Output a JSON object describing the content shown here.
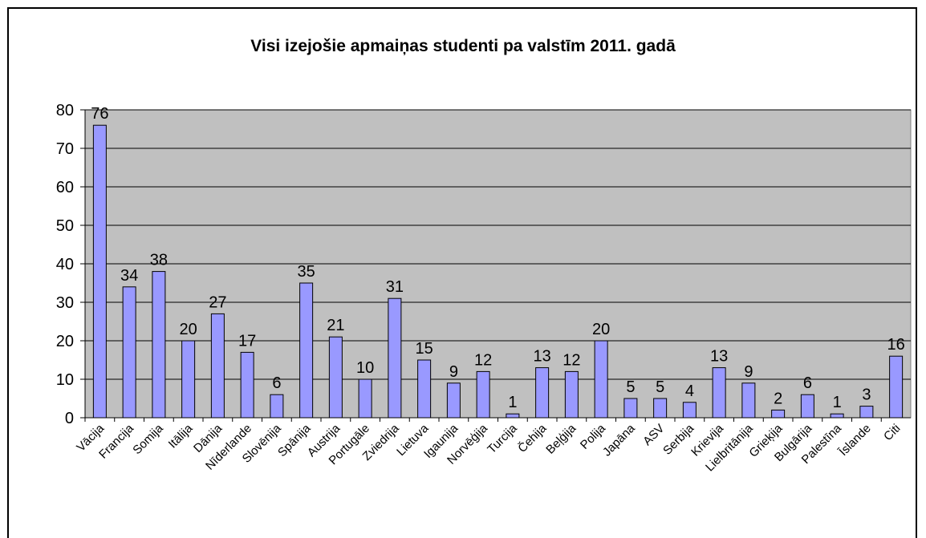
{
  "chart_data": {
    "type": "bar",
    "title": "Visi izejošie apmaiņas studenti pa valstīm 2011. gadā",
    "categories": [
      "Vācija",
      "Francija",
      "Somija",
      "Itālija",
      "Dānija",
      "Nīderlande",
      "Slovēnija",
      "Spānija",
      "Austrija",
      "Portugāle",
      "Zviedrija",
      "Lietuva",
      "Igaunija",
      "Norvēģija",
      "Turcija",
      "Čehija",
      "Beļģija",
      "Polija",
      "Japāna",
      "ASV",
      "Serbija",
      "Krievija",
      "Lielbritānija",
      "Grieķija",
      "Bulgārija",
      "Palestīna",
      "Īslande",
      "Citi"
    ],
    "values": [
      76,
      34,
      38,
      20,
      27,
      17,
      6,
      35,
      21,
      10,
      31,
      15,
      9,
      12,
      1,
      13,
      12,
      20,
      5,
      5,
      4,
      13,
      9,
      2,
      6,
      1,
      3,
      16
    ],
    "color": "#9999ff",
    "ylim": [
      0,
      80
    ],
    "yticks": [
      0,
      10,
      20,
      30,
      40,
      50,
      60,
      70,
      80
    ],
    "grid": true
  }
}
